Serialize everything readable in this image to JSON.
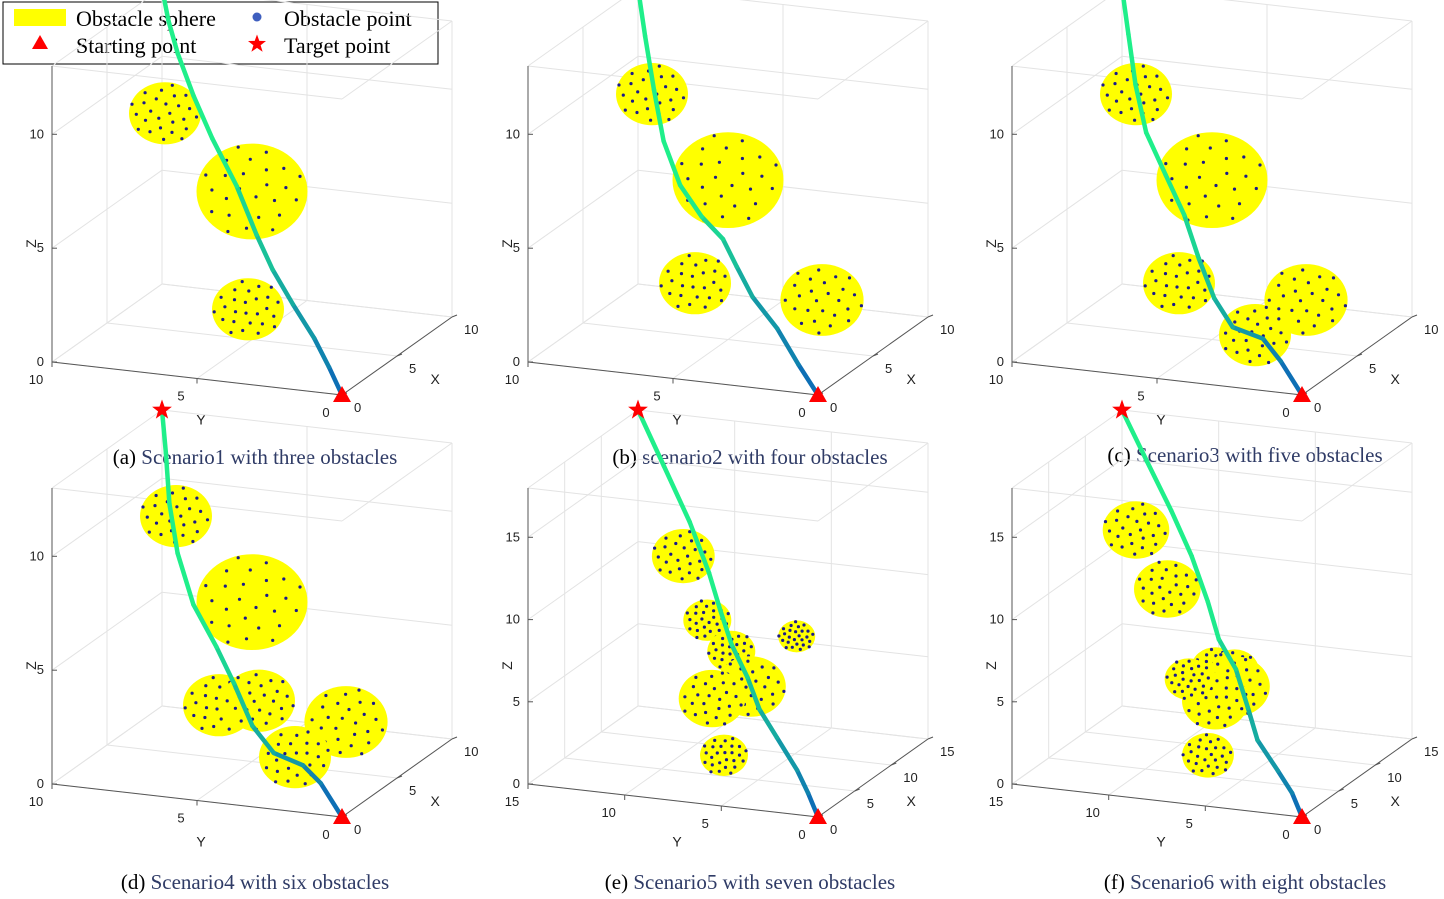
{
  "legend": {
    "items": [
      {
        "id": "sphere",
        "label": "Obstacle sphere",
        "color": "#ffff00",
        "icon": "yellow-rectangle"
      },
      {
        "id": "opoint",
        "label": "Obstacle point",
        "color": "#3f5fbf",
        "icon": "blue-dot"
      },
      {
        "id": "start",
        "label": "Starting point",
        "color": "#ff0000",
        "icon": "red-triangle"
      },
      {
        "id": "target",
        "label": "Target point",
        "color": "#ff0000",
        "icon": "red-star"
      }
    ]
  },
  "colors": {
    "path_start": "#0d6fb5",
    "path_end": "#1fef8a",
    "sphere": "#ffff00",
    "obstacle_point": "#1a1a8c",
    "marker": "#ff0000",
    "grid": "#e3e3e3",
    "axis": "#555555"
  },
  "chart_data": [
    {
      "type": "line",
      "panel": "a",
      "caption_prefix": "(a) ",
      "caption": "Scenario1 with three obstacles",
      "xlabel": "X",
      "ylabel": "Y",
      "zlabel": "Z",
      "xlim": [
        0,
        10
      ],
      "ylim": [
        0,
        10
      ],
      "zlim": [
        0,
        13
      ],
      "xticks": [
        "0",
        "5",
        "10"
      ],
      "yticks": [
        "0",
        "5",
        "10"
      ],
      "zticks": [
        "0",
        "5",
        "10"
      ],
      "start": [
        0,
        0,
        0
      ],
      "target": [
        10,
        10,
        13
      ],
      "obstacles": [
        {
          "center": [
            5,
            8,
            9.5
          ],
          "radius": 1.3
        },
        {
          "center": [
            5,
            5,
            6.5
          ],
          "radius": 2
        },
        {
          "center": [
            2,
            4,
            2.5
          ],
          "radius": 1.3
        }
      ],
      "path": [
        [
          0,
          0,
          0
        ],
        [
          0.4,
          0.6,
          1
        ],
        [
          0.9,
          1.3,
          2
        ],
        [
          1.6,
          2.3,
          3.1
        ],
        [
          2.4,
          3.3,
          4.2
        ],
        [
          3.3,
          4.2,
          5.3
        ],
        [
          4.4,
          5.3,
          6.9
        ],
        [
          5.6,
          6.6,
          8.4
        ],
        [
          6.8,
          7.7,
          9.7
        ],
        [
          8,
          8.7,
          11
        ],
        [
          9,
          9.4,
          12
        ],
        [
          10,
          10,
          13
        ]
      ]
    },
    {
      "type": "line",
      "panel": "b",
      "caption_prefix": "(b) ",
      "caption": "scenario2 with four obstacles",
      "xlabel": "X",
      "ylabel": "Y",
      "zlabel": "Z",
      "xlim": [
        0,
        10
      ],
      "ylim": [
        0,
        10
      ],
      "zlim": [
        0,
        13
      ],
      "xticks": [
        "0",
        "5",
        "10"
      ],
      "yticks": [
        "0",
        "5",
        "10"
      ],
      "zticks": [
        "0",
        "5",
        "10"
      ],
      "start": [
        0,
        0,
        0
      ],
      "target": [
        10,
        10,
        13
      ],
      "obstacles": [
        {
          "center": [
            6,
            8,
            10
          ],
          "radius": 1.3
        },
        {
          "center": [
            5,
            5,
            7
          ],
          "radius": 2
        },
        {
          "center": [
            2,
            5,
            3.5
          ],
          "radius": 1.3
        },
        {
          "center": [
            3,
            1,
            3
          ],
          "radius": 1.5
        }
      ],
      "path": [
        [
          0,
          0,
          0
        ],
        [
          0.6,
          0.9,
          1
        ],
        [
          1.3,
          1.9,
          2.2
        ],
        [
          1.7,
          2.9,
          3.3
        ],
        [
          2.1,
          3.6,
          4.4
        ],
        [
          2.7,
          4.3,
          5.3
        ],
        [
          3.4,
          5.3,
          5.9
        ],
        [
          4.6,
          6.5,
          6.7
        ],
        [
          6,
          7.6,
          8
        ],
        [
          7.5,
          8.5,
          9.6
        ],
        [
          8.8,
          9.3,
          11.4
        ],
        [
          10,
          10,
          13
        ]
      ]
    },
    {
      "type": "line",
      "panel": "c",
      "caption_prefix": "(c) ",
      "caption": "Scenario3 with five obstacles",
      "xlabel": "X",
      "ylabel": "Y",
      "zlabel": "Z",
      "xlim": [
        0,
        10
      ],
      "ylim": [
        0,
        10
      ],
      "zlim": [
        0,
        13
      ],
      "xticks": [
        "0",
        "5",
        "10"
      ],
      "yticks": [
        "0",
        "5",
        "10"
      ],
      "zticks": [
        "0",
        "5",
        "10"
      ],
      "start": [
        0,
        0,
        0
      ],
      "target": [
        10,
        10,
        13
      ],
      "obstacles": [
        {
          "center": [
            6,
            8,
            10
          ],
          "radius": 1.3
        },
        {
          "center": [
            5,
            5,
            7
          ],
          "radius": 2
        },
        {
          "center": [
            2,
            5,
            3.5
          ],
          "radius": 1.3
        },
        {
          "center": [
            3,
            1,
            3
          ],
          "radius": 1.5
        },
        {
          "center": [
            1,
            2,
            2
          ],
          "radius": 1.3
        }
      ],
      "path": [
        [
          0,
          0,
          0
        ],
        [
          0.7,
          1,
          1.1
        ],
        [
          1.2,
          1.8,
          1.8
        ],
        [
          1.6,
          3,
          2
        ],
        [
          2.3,
          3.9,
          2.9
        ],
        [
          3,
          4.7,
          4.3
        ],
        [
          3.8,
          5.5,
          5.8
        ],
        [
          5,
          6.6,
          7
        ],
        [
          6.4,
          7.8,
          8.2
        ],
        [
          7.8,
          8.7,
          9.7
        ],
        [
          9,
          9.4,
          11.4
        ],
        [
          10,
          10,
          13
        ]
      ]
    },
    {
      "type": "line",
      "panel": "d",
      "caption_prefix": "(d) ",
      "caption": "Scenario4 with six obstacles",
      "xlabel": "X",
      "ylabel": "Y",
      "zlabel": "Z",
      "xlim": [
        0,
        10
      ],
      "ylim": [
        0,
        10
      ],
      "zlim": [
        0,
        13
      ],
      "xticks": [
        "0",
        "5",
        "10"
      ],
      "yticks": [
        "0",
        "5",
        "10"
      ],
      "zticks": [
        "0",
        "5",
        "10"
      ],
      "start": [
        0,
        0,
        0
      ],
      "target": [
        10,
        10,
        13
      ],
      "obstacles": [
        {
          "center": [
            6,
            8,
            10
          ],
          "radius": 1.3
        },
        {
          "center": [
            5,
            5,
            7
          ],
          "radius": 2
        },
        {
          "center": [
            2,
            5,
            3.5
          ],
          "radius": 1.3
        },
        {
          "center": [
            3,
            4,
            3.5
          ],
          "radius": 1.3
        },
        {
          "center": [
            3,
            1,
            3
          ],
          "radius": 1.5
        },
        {
          "center": [
            1,
            2,
            2
          ],
          "radius": 1.3
        }
      ],
      "path": [
        [
          0,
          0,
          0
        ],
        [
          0.7,
          1,
          1.1
        ],
        [
          1.2,
          1.8,
          1.6
        ],
        [
          1.7,
          3,
          1.8
        ],
        [
          2.4,
          4,
          2.6
        ],
        [
          3.1,
          4.9,
          4.1
        ],
        [
          4.4,
          6,
          5.1
        ],
        [
          6,
          7.4,
          6.2
        ],
        [
          7.2,
          8.4,
          7.9
        ],
        [
          8.3,
          9.1,
          9.6
        ],
        [
          9.3,
          9.6,
          11.4
        ],
        [
          10,
          10,
          13
        ]
      ]
    },
    {
      "type": "line",
      "panel": "e",
      "caption_prefix": "(e) ",
      "caption": "Scenario5 with  seven obstacles",
      "xlabel": "X",
      "ylabel": "Y",
      "zlabel": "Z",
      "xlim": [
        0,
        15
      ],
      "ylim": [
        0,
        15
      ],
      "zlim": [
        0,
        18
      ],
      "xticks": [
        "0",
        "5",
        "10",
        "15"
      ],
      "yticks": [
        "0",
        "5",
        "10",
        "15"
      ],
      "zticks": [
        "0",
        "5",
        "10",
        "15"
      ],
      "start": [
        0,
        0,
        0
      ],
      "target": [
        15,
        15,
        18
      ],
      "obstacles": [
        {
          "center": [
            8,
            10,
            12
          ],
          "radius": 1.7
        },
        {
          "center": [
            6,
            8,
            9
          ],
          "radius": 1.3
        },
        {
          "center": [
            4,
            6,
            8
          ],
          "radius": 1.3
        },
        {
          "center": [
            4,
            5,
            6
          ],
          "radius": 1.9
        },
        {
          "center": [
            4,
            7,
            5
          ],
          "radius": 1.8
        },
        {
          "center": [
            3,
            6,
            2
          ],
          "radius": 1.3
        },
        {
          "center": [
            5,
            3,
            9
          ],
          "radius": 1
        }
      ],
      "path": [
        [
          0,
          0,
          0
        ],
        [
          0.5,
          0.7,
          1.2
        ],
        [
          1.1,
          1.5,
          2.3
        ],
        [
          2.3,
          3,
          3.7
        ],
        [
          3.1,
          4.2,
          5
        ],
        [
          4.1,
          5.2,
          6.5
        ],
        [
          5.1,
          6.4,
          8
        ],
        [
          6.2,
          7.4,
          9.6
        ],
        [
          7.3,
          8.4,
          11.4
        ],
        [
          9.4,
          10.2,
          13.6
        ],
        [
          12.2,
          12.6,
          15.8
        ],
        [
          15,
          15,
          18
        ]
      ]
    },
    {
      "type": "line",
      "panel": "f",
      "caption_prefix": "(f) ",
      "caption": "Scenario6 with eight obstacles",
      "xlabel": "X",
      "ylabel": "Y",
      "zlabel": "Z",
      "xlim": [
        0,
        15
      ],
      "ylim": [
        0,
        15
      ],
      "zlim": [
        0,
        18
      ],
      "xticks": [
        "0",
        "5",
        "10",
        "15"
      ],
      "yticks": [
        "0",
        "5",
        "10",
        "15"
      ],
      "zticks": [
        "0",
        "5",
        "10",
        "15"
      ],
      "start": [
        0,
        0,
        0
      ],
      "target": [
        15,
        15,
        18
      ],
      "obstacles": [
        {
          "center": [
            9,
            12,
            13
          ],
          "radius": 1.8
        },
        {
          "center": [
            8,
            10,
            10
          ],
          "radius": 1.8
        },
        {
          "center": [
            4,
            6,
            7
          ],
          "radius": 1.3
        },
        {
          "center": [
            4,
            5,
            7
          ],
          "radius": 1.3
        },
        {
          "center": [
            4,
            5,
            6
          ],
          "radius": 1.9
        },
        {
          "center": [
            4,
            6,
            5
          ],
          "radius": 1.8
        },
        {
          "center": [
            3,
            6,
            2
          ],
          "radius": 1.4
        },
        {
          "center": [
            3,
            7,
            6.5
          ],
          "radius": 1.3
        }
      ],
      "path": [
        [
          0,
          0,
          0
        ],
        [
          0.5,
          0.7,
          1.2
        ],
        [
          1.2,
          1.7,
          2.2
        ],
        [
          2.1,
          3.1,
          3.6
        ],
        [
          2.9,
          3.9,
          5.2
        ],
        [
          3.9,
          4.9,
          7.1
        ],
        [
          5,
          6.2,
          8.4
        ],
        [
          6.4,
          7.3,
          10.1
        ],
        [
          7.9,
          8.7,
          12.2
        ],
        [
          9.6,
          10.4,
          14.2
        ],
        [
          12.1,
          12.6,
          16.1
        ],
        [
          15,
          15,
          18
        ]
      ]
    }
  ]
}
